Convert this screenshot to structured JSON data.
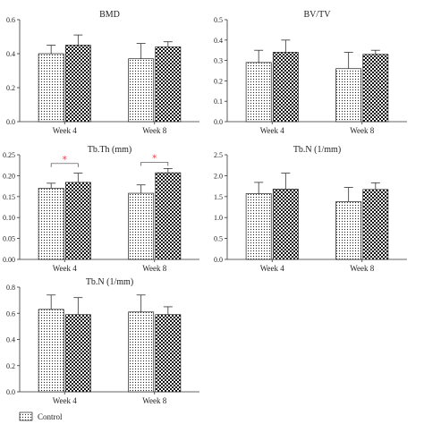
{
  "chart_data": [
    {
      "type": "bar",
      "title": "BMD",
      "categories": [
        "Week 4",
        "Week 8"
      ],
      "ylim": [
        0,
        0.6
      ],
      "yticks": [
        "0.0",
        "0.2",
        "0.4",
        "0.6"
      ],
      "series": [
        {
          "name": "Control",
          "values": [
            0.4,
            0.37
          ],
          "errors": [
            0.05,
            0.09
          ]
        },
        {
          "name": "",
          "values": [
            0.45,
            0.44
          ],
          "errors": [
            0.06,
            0.03
          ]
        }
      ],
      "significance": []
    },
    {
      "type": "bar",
      "title": "BV/TV",
      "categories": [
        "Week 4",
        "Week 8"
      ],
      "ylim": [
        0,
        0.5
      ],
      "yticks": [
        "0.0",
        "0.1",
        "0.2",
        "0.3",
        "0.4",
        "0.5"
      ],
      "series": [
        {
          "name": "Control",
          "values": [
            0.29,
            0.26
          ],
          "errors": [
            0.06,
            0.08
          ]
        },
        {
          "name": "",
          "values": [
            0.34,
            0.33
          ],
          "errors": [
            0.06,
            0.02
          ]
        }
      ],
      "significance": []
    },
    {
      "type": "bar",
      "title": "Tb.Th (mm)",
      "categories": [
        "Week 4",
        "Week 8"
      ],
      "ylim": [
        0,
        0.25
      ],
      "yticks": [
        "0.00",
        "0.05",
        "0.10",
        "0.15",
        "0.20",
        "0.25"
      ],
      "series": [
        {
          "name": "Control",
          "values": [
            0.17,
            0.158
          ],
          "errors": [
            0.012,
            0.02
          ]
        },
        {
          "name": "",
          "values": [
            0.184,
            0.207
          ],
          "errors": [
            0.022,
            0.01
          ]
        }
      ],
      "significance": [
        {
          "category_index": 0,
          "label": "*",
          "y": 0.229
        },
        {
          "category_index": 1,
          "label": "*",
          "y": 0.232
        }
      ]
    },
    {
      "type": "bar",
      "title": "Tb.N (1/mm)",
      "categories": [
        "Week 4",
        "Week 8"
      ],
      "ylim": [
        0,
        2.5
      ],
      "yticks": [
        "0.0",
        "0.5",
        "1.0",
        "1.5",
        "2.0",
        "2.5"
      ],
      "series": [
        {
          "name": "Control",
          "values": [
            1.57,
            1.38
          ],
          "errors": [
            0.27,
            0.34
          ]
        },
        {
          "name": "",
          "values": [
            1.68,
            1.67
          ],
          "errors": [
            0.38,
            0.16
          ]
        }
      ],
      "significance": []
    },
    {
      "type": "bar",
      "title": "Tb.N (1/mm)",
      "categories": [
        "Week 4",
        "Week 8"
      ],
      "ylim": [
        0,
        0.8
      ],
      "yticks": [
        "0.0",
        "0.2",
        "0.4",
        "0.6",
        "0.8"
      ],
      "series": [
        {
          "name": "Control",
          "values": [
            0.63,
            0.61
          ],
          "errors": [
            0.11,
            0.13
          ]
        },
        {
          "name": "",
          "values": [
            0.59,
            0.59
          ],
          "errors": [
            0.13,
            0.06
          ]
        }
      ],
      "significance": []
    }
  ],
  "legend": [
    {
      "label": "Control",
      "pattern": "dots"
    }
  ]
}
